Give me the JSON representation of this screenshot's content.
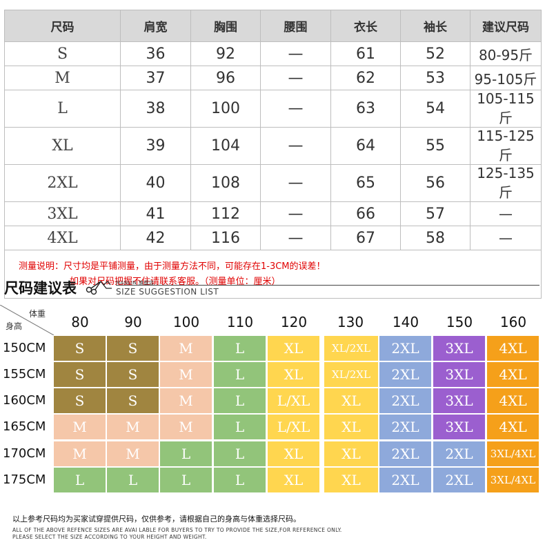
{
  "size_table": {
    "headers": [
      "尺码",
      "肩宽",
      "胸围",
      "腰围",
      "衣长",
      "袖长",
      "建议尺码"
    ],
    "rows": [
      [
        "S",
        "36",
        "92",
        "—",
        "61",
        "52",
        "80-95斤"
      ],
      [
        "M",
        "37",
        "96",
        "—",
        "62",
        "53",
        "95-105斤"
      ],
      [
        "L",
        "38",
        "100",
        "—",
        "63",
        "54",
        "105-115斤"
      ],
      [
        "XL",
        "39",
        "104",
        "—",
        "64",
        "55",
        "115-125斤"
      ],
      [
        "2XL",
        "40",
        "108",
        "—",
        "65",
        "56",
        "125-135斤"
      ],
      [
        "3XL",
        "41",
        "112",
        "—",
        "66",
        "57",
        "—"
      ],
      [
        "4XL",
        "42",
        "116",
        "—",
        "67",
        "58",
        "—"
      ]
    ],
    "note_line1": "测量说明：尺寸均是平铺测量，由于测量方法不同，可能存在1-3CM的误差！",
    "note_line2": "如果对尺码把握不住请联系客服。（测量单位：厘米）"
  },
  "suggestion": {
    "title": "尺码建议表",
    "brand": "MANLIN 旗舰店",
    "subtitle": "SIZE SUGGESTION LIST",
    "weight_label": "体重",
    "height_label": "身高",
    "weights": [
      "80",
      "90",
      "100",
      "110",
      "120",
      "130",
      "140",
      "150",
      "160"
    ],
    "heights": [
      "150CM",
      "155CM",
      "160CM",
      "165CM",
      "170CM",
      "175CM"
    ],
    "grid": [
      [
        "S",
        "S",
        "M",
        "L",
        "XL",
        "XL/2XL",
        "2XL",
        "3XL",
        "4XL"
      ],
      [
        "S",
        "S",
        "M",
        "L",
        "XL",
        "XL/2XL",
        "2XL",
        "3XL",
        "4XL"
      ],
      [
        "S",
        "S",
        "M",
        "L",
        "L/XL",
        "XL",
        "2XL",
        "3XL",
        "4XL"
      ],
      [
        "M",
        "M",
        "M",
        "L",
        "L/XL",
        "XL",
        "2XL",
        "3XL",
        "4XL"
      ],
      [
        "M",
        "M",
        "L",
        "L",
        "XL",
        "XL",
        "2XL",
        "2XL",
        "3XL/4XL"
      ],
      [
        "L",
        "L",
        "L",
        "L",
        "XL",
        "XL",
        "2XL",
        "2XL",
        "3XL/4XL"
      ]
    ],
    "colors": {
      "S": "#a08540",
      "M": "#f5c7a9",
      "L": "#92c47a",
      "XL": "#ffd64f",
      "L/XL": "#ffd64f",
      "XL/2XL": "#ffd64f",
      "2XL": "#8ea9db",
      "3XL": "#9b5fcf",
      "4XL": "#f5a01a",
      "3XL/4XL": "#f5a01a"
    }
  },
  "footer": {
    "cn": "以上参考尺码均为买家试穿提供尺码，仅供参考，请根据自己的身高与体重选择尺码。",
    "en1": "ALL OF THE ABOVE REFENCE SIZES ARE AVAI LABLE FOR BUYERS TO TRY TO PROVIDE THE SIZE,FOR REFERENCE ONLY.",
    "en2": "PLEASE SELECT THE SIZE ACCORDING TO YOUR HEIGHT AND WEIGHT."
  }
}
